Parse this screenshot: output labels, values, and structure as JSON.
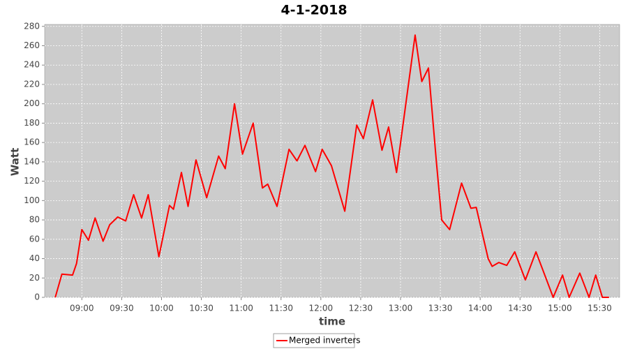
{
  "chart_data": {
    "type": "line",
    "title": "4-1-2018",
    "x_label": "time",
    "y_label": "Watt",
    "x": [
      "08:40",
      "08:45",
      "08:53",
      "08:56",
      "09:00",
      "09:05",
      "09:10",
      "09:16",
      "09:21",
      "09:27",
      "09:33",
      "09:39",
      "09:45",
      "09:50",
      "09:58",
      "10:06",
      "10:09",
      "10:15",
      "10:20",
      "10:26",
      "10:34",
      "10:43",
      "10:48",
      "10:55",
      "11:01",
      "11:09",
      "11:16",
      "11:20",
      "11:27",
      "11:36",
      "11:42",
      "11:48",
      "11:56",
      "12:01",
      "12:08",
      "12:18",
      "12:27",
      "12:32",
      "12:39",
      "12:46",
      "12:51",
      "12:57",
      "13:11",
      "13:16",
      "13:21",
      "13:27",
      "13:31",
      "13:37",
      "13:46",
      "13:53",
      "13:57",
      "14:06",
      "14:09",
      "14:14",
      "14:20",
      "14:26",
      "14:34",
      "14:42",
      "14:55",
      "15:02",
      "15:07",
      "15:15",
      "15:22",
      "15:27",
      "15:32",
      "15:37"
    ],
    "series": [
      {
        "name": "Merged inverters",
        "color": "#ff0000",
        "values": [
          0,
          24,
          23,
          35,
          70,
          59,
          82,
          58,
          75,
          83,
          79,
          106,
          82,
          106,
          42,
          95,
          91,
          129,
          94,
          142,
          103,
          146,
          133,
          200,
          148,
          180,
          113,
          117,
          94,
          153,
          141,
          157,
          130,
          153,
          136,
          89,
          178,
          164,
          204,
          152,
          176,
          129,
          271,
          223,
          237,
          140,
          80,
          70,
          118,
          92,
          93,
          40,
          32,
          36,
          33,
          47,
          18,
          47,
          0,
          23,
          0,
          25,
          0,
          23,
          0,
          0
        ]
      }
    ],
    "xlim": [
      "08:32",
      "15:45"
    ],
    "xticks": [
      "09:00",
      "09:30",
      "10:00",
      "10:30",
      "11:00",
      "11:30",
      "12:00",
      "12:30",
      "13:00",
      "13:30",
      "14:00",
      "14:30",
      "15:00",
      "15:30"
    ],
    "ylim": [
      0,
      282
    ],
    "yticks": [
      0,
      20,
      40,
      60,
      80,
      100,
      120,
      140,
      160,
      180,
      200,
      220,
      240,
      260,
      280
    ],
    "grid": true,
    "legend": "bottom"
  }
}
